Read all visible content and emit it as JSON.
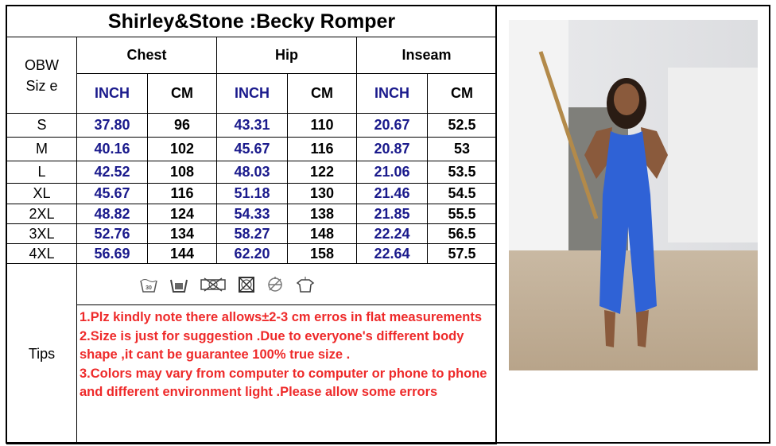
{
  "title": "Shirley&Stone :Becky Romper",
  "size_header": [
    "OBW",
    "Siz e"
  ],
  "groups": [
    "Chest",
    "Hip",
    "Inseam"
  ],
  "units": [
    "INCH",
    "CM",
    "INCH",
    "CM",
    "INCH",
    "CM"
  ],
  "rows": [
    [
      "S",
      "37.80",
      "96",
      "43.31",
      "110",
      "20.67",
      "52.5"
    ],
    [
      "M",
      "40.16",
      "102",
      "45.67",
      "116",
      "20.87",
      "53"
    ],
    [
      "L",
      "42.52",
      "108",
      "48.03",
      "122",
      "21.06",
      "53.5"
    ],
    [
      "XL",
      "45.67",
      "116",
      "51.18",
      "130",
      "21.46",
      "54.5"
    ],
    [
      "2XL",
      "48.82",
      "124",
      "54.33",
      "138",
      "21.85",
      "55.5"
    ],
    [
      "3XL",
      "52.76",
      "134",
      "58.27",
      "148",
      "22.24",
      "56.5"
    ],
    [
      "4XL",
      "56.69",
      "144",
      "62.20",
      "158",
      "22.64",
      "57.5"
    ]
  ],
  "care_icons": [
    "hand-wash-30-icon",
    "machine-wash-icon",
    "no-tumble-dry-icon",
    "no-dry-clean-icon",
    "no-bleach-icon",
    "hang-dry-icon"
  ],
  "tips_label": "Tips",
  "tips": [
    "1.Plz kindly note there allows±2-3 cm erros in flat measurements",
    "2.Size is just for suggestion .Due to everyone's different body shape ,it cant be guarantee 100% true size .",
    "3.Colors may  vary from computer to computer or phone to phone and different environment light .Please allow some errors"
  ],
  "colors": {
    "inch": "#1a1a8c",
    "tips": "#ee2a2a",
    "romper": "#2f62d6"
  }
}
